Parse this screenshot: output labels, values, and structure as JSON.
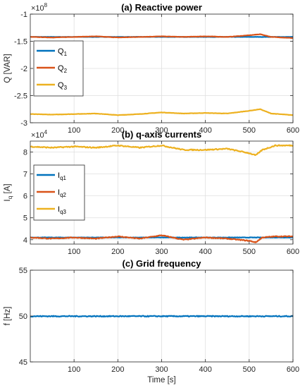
{
  "chart_data": [
    {
      "type": "line",
      "title": "(a) Reactive power",
      "ylabel": "Q [VAR]",
      "xlabel": "",
      "exponent_label": "×10",
      "exponent_power": "8",
      "xlim": [
        0,
        600
      ],
      "ylim": [
        -3.0,
        -1.0
      ],
      "scale": 100000000,
      "xticks": [
        100,
        200,
        300,
        400,
        500,
        600
      ],
      "yticks": [
        -3,
        -2.5,
        -2,
        -1.5,
        -1
      ],
      "ytick_labels": [
        "-3",
        "-2.5",
        "-2",
        "-1.5",
        "-1"
      ],
      "grid": true,
      "legend_position": "left",
      "series": [
        {
          "name": "Q",
          "sub": "1",
          "color": "#0072BD",
          "x": [
            0,
            600
          ],
          "values": [
            -1.42,
            -1.42
          ]
        },
        {
          "name": "Q",
          "sub": "2",
          "color": "#D95319",
          "x": [
            0,
            50,
            100,
            150,
            200,
            250,
            300,
            350,
            400,
            450,
            500,
            525,
            550,
            600
          ],
          "values": [
            -1.42,
            -1.43,
            -1.42,
            -1.41,
            -1.43,
            -1.42,
            -1.41,
            -1.42,
            -1.41,
            -1.42,
            -1.39,
            -1.37,
            -1.42,
            -1.44
          ]
        },
        {
          "name": "Q",
          "sub": "3",
          "color": "#EDB120",
          "x": [
            0,
            50,
            100,
            150,
            200,
            250,
            300,
            350,
            400,
            450,
            500,
            525,
            550,
            600
          ],
          "values": [
            -2.84,
            -2.85,
            -2.84,
            -2.83,
            -2.86,
            -2.84,
            -2.81,
            -2.83,
            -2.82,
            -2.83,
            -2.78,
            -2.75,
            -2.83,
            -2.86
          ]
        }
      ]
    },
    {
      "type": "line",
      "title": "(b) q-axis currents",
      "ylabel": "I",
      "ylabel_sub": "q",
      "ylabel_unit": " [A]",
      "xlabel": "",
      "exponent_label": "×10",
      "exponent_power": "4",
      "xlim": [
        0,
        600
      ],
      "ylim": [
        3.8,
        8.5
      ],
      "scale": 10000,
      "xticks": [
        100,
        200,
        300,
        400,
        500,
        600
      ],
      "yticks": [
        4,
        5,
        6,
        7,
        8
      ],
      "ytick_labels": [
        "4",
        "5",
        "6",
        "7",
        "8"
      ],
      "grid": true,
      "legend_position": "left",
      "series": [
        {
          "name": "I",
          "sub": "q1",
          "color": "#0072BD",
          "x": [
            0,
            600
          ],
          "values": [
            4.1,
            4.1
          ]
        },
        {
          "name": "I",
          "sub": "q2",
          "color": "#D95319",
          "x": [
            0,
            50,
            100,
            150,
            200,
            250,
            300,
            350,
            400,
            450,
            500,
            515,
            530,
            560,
            600
          ],
          "values": [
            4.1,
            4.05,
            4.1,
            4.05,
            4.15,
            4.05,
            4.2,
            4.0,
            4.1,
            4.05,
            3.95,
            3.88,
            4.1,
            4.15,
            4.15
          ]
        },
        {
          "name": "I",
          "sub": "q3",
          "color": "#EDB120",
          "x": [
            0,
            50,
            100,
            150,
            200,
            250,
            300,
            350,
            400,
            450,
            500,
            515,
            530,
            560,
            600
          ],
          "values": [
            8.25,
            8.2,
            8.25,
            8.2,
            8.3,
            8.2,
            8.3,
            8.1,
            8.1,
            8.15,
            7.95,
            7.85,
            8.1,
            8.3,
            8.3
          ]
        }
      ]
    },
    {
      "type": "line",
      "title": "(c) Grid frequency",
      "ylabel": "f [Hz]",
      "xlabel": "Time [s]",
      "xlim": [
        0,
        600
      ],
      "ylim": [
        45,
        55
      ],
      "scale": 1,
      "xticks": [
        100,
        200,
        300,
        400,
        500,
        600
      ],
      "yticks": [
        45,
        50,
        55
      ],
      "ytick_labels": [
        "45",
        "50",
        "55"
      ],
      "grid": true,
      "series": [
        {
          "name": "",
          "sub": "",
          "color": "#0072BD",
          "x": [
            0,
            600
          ],
          "values": [
            49.98,
            49.98
          ]
        }
      ]
    }
  ]
}
